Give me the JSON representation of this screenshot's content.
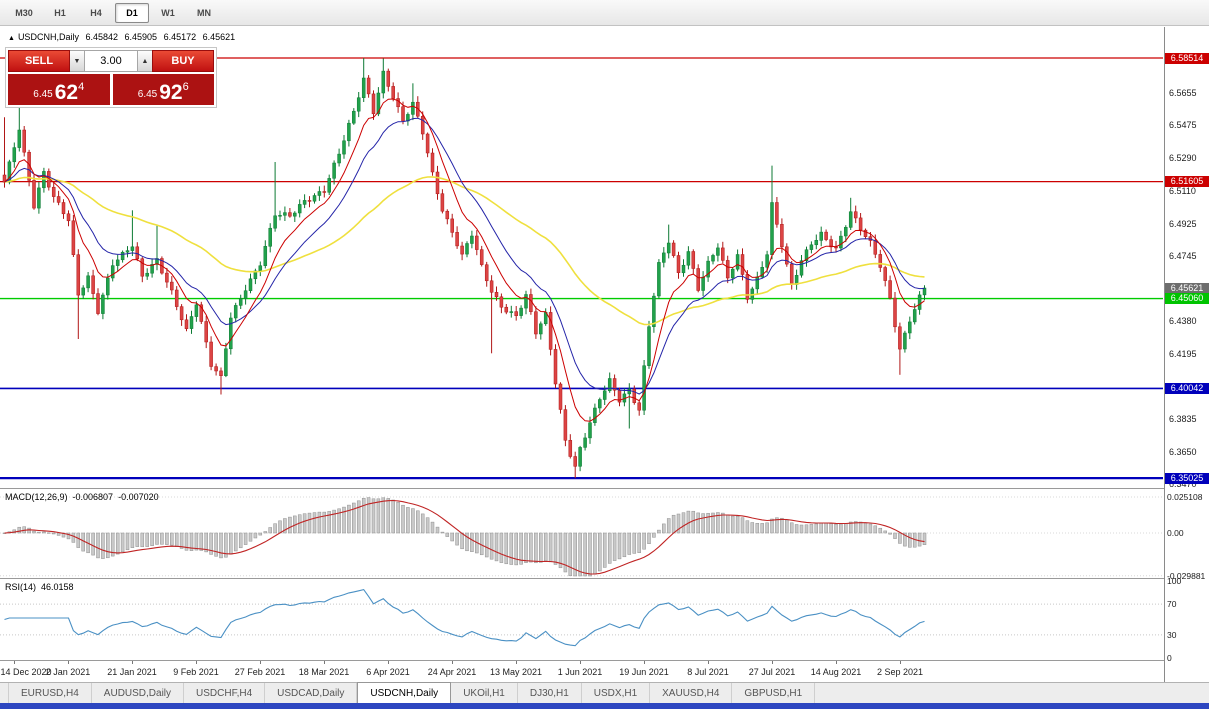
{
  "timeframe_bar": {
    "items": [
      "M30",
      "H1",
      "H4",
      "D1",
      "W1",
      "MN"
    ],
    "active": "D1"
  },
  "icons": {
    "collapse_triangle": "▲",
    "spin_down": "▼",
    "spin_up": "▲"
  },
  "chart": {
    "symbol": "USDCNH,Daily",
    "open": "6.45842",
    "high": "6.45905",
    "low": "6.45172",
    "close": "6.45621"
  },
  "trade": {
    "sell_label": "SELL",
    "buy_label": "BUY",
    "volume": "3.00",
    "bid": {
      "prefix": "6.45",
      "big": "62",
      "sup": "4"
    },
    "ask": {
      "prefix": "6.45",
      "big": "92",
      "sup": "6"
    }
  },
  "price_scale": {
    "ticks": [
      "6.5655",
      "6.5475",
      "6.5290",
      "6.5110",
      "6.4925",
      "6.4745",
      "6.4380",
      "6.4195",
      "6.3835",
      "6.3650",
      "6.3470"
    ],
    "level_labels": [
      {
        "text": "6.58514",
        "color": "#cc0000"
      },
      {
        "text": "6.51605",
        "color": "#cc0000"
      },
      {
        "text": "6.45621",
        "color": "#6e6e6e"
      },
      {
        "text": "6.45060",
        "color": "#00c400"
      },
      {
        "text": "6.40042",
        "color": "#0000bb"
      },
      {
        "text": "6.35025",
        "color": "#0000bb"
      }
    ]
  },
  "indicators": {
    "macd": {
      "label": "MACD(12,26,9)",
      "value_main": "-0.006807",
      "value_signal": "-0.007020",
      "fast": 12,
      "slow": 26,
      "signal": 9,
      "scale": [
        {
          "text": "0.025108",
          "v": 0.025108
        },
        {
          "text": "0.00",
          "v": 0
        },
        {
          "text": "-0.029881",
          "v": -0.029881
        }
      ]
    },
    "rsi": {
      "label": "RSI(14)",
      "value": "46.0158",
      "period": 14,
      "scale": [
        {
          "text": "100",
          "v": 100
        },
        {
          "text": "70",
          "v": 70
        },
        {
          "text": "30",
          "v": 30
        },
        {
          "text": "0",
          "v": 0
        }
      ]
    }
  },
  "date_axis": {
    "labels": [
      {
        "label": "14 Dec 2020",
        "i": 2
      },
      {
        "label": "2 Jan 2021",
        "i": 13
      },
      {
        "label": "21 Jan 2021",
        "i": 26
      },
      {
        "label": "9 Feb 2021",
        "i": 39
      },
      {
        "label": "27 Feb 2021",
        "i": 52
      },
      {
        "label": "18 Mar 2021",
        "i": 65
      },
      {
        "label": "6 Apr 2021",
        "i": 78
      },
      {
        "label": "24 Apr 2021",
        "i": 91
      },
      {
        "label": "13 May 2021",
        "i": 104
      },
      {
        "label": "1 Jun 2021",
        "i": 117
      },
      {
        "label": "19 Jun 2021",
        "i": 130
      },
      {
        "label": "8 Jul 2021",
        "i": 143
      },
      {
        "label": "27 Jul 2021",
        "i": 156
      },
      {
        "label": "14 Aug 2021",
        "i": 169
      },
      {
        "label": "2 Sep 2021",
        "i": 182
      }
    ]
  },
  "tab_bar": {
    "tabs": [
      "EURUSD,H4",
      "AUDUSD,Daily",
      "USDCHF,H4",
      "USDCAD,Daily",
      "USDCNH,Daily",
      "UKOil,H1",
      "DJ30,H1",
      "USDX,H1",
      "XAUUSD,H4",
      "GBPUSD,H1"
    ],
    "active_index": 4
  },
  "chart_data": {
    "type": "candlestick",
    "symbol": "USDCNH",
    "timeframe": "Daily",
    "ohlc_current": {
      "open": 6.45842,
      "high": 6.45905,
      "low": 6.45172,
      "close": 6.45621
    },
    "current_price": 6.45621,
    "candle_count": 188,
    "candle_step": 4.92,
    "candle_x0": 4.5,
    "y_axis": {
      "price_top": 6.6025,
      "price_bottom": 6.3447
    },
    "horizontal_levels": [
      {
        "price": 6.58514,
        "color": "#cc0000",
        "width": 1.2
      },
      {
        "price": 6.51605,
        "color": "#cc0000",
        "width": 1.2
      },
      {
        "price": 6.4506,
        "color": "#00cc00",
        "width": 1.4
      },
      {
        "price": 6.40042,
        "color": "#0000bb",
        "width": 1.6
      },
      {
        "price": 6.35025,
        "color": "#0000bb",
        "width": 2.2
      }
    ],
    "moving_averages": [
      {
        "period": 8,
        "color": "#cc0000",
        "width": 1
      },
      {
        "period": 16,
        "color": "#2424a8",
        "width": 1
      },
      {
        "period": 55,
        "color": "#efe03e",
        "width": 1.6
      }
    ],
    "colors": {
      "up": "#21a14b",
      "up_border": "#0c7a33",
      "down": "#dc4444",
      "down_border": "#b01616",
      "macd_histogram": "#c9c9c9",
      "macd_histogram_border": "#8f8f8f",
      "macd_signal": "#c02424",
      "rsi_line": "#4a90c4"
    },
    "waypoints": [
      [
        0,
        6.515,
        6.552,
        null
      ],
      [
        3,
        6.545,
        6.558,
        null
      ],
      [
        6,
        6.503,
        null,
        null
      ],
      [
        8,
        6.522,
        null,
        null
      ],
      [
        10,
        6.508,
        null,
        null
      ],
      [
        13,
        6.494,
        null,
        null
      ],
      [
        15,
        6.452,
        null,
        6.428
      ],
      [
        17,
        6.462,
        null,
        null
      ],
      [
        19,
        6.444,
        null,
        null
      ],
      [
        22,
        6.471,
        null,
        null
      ],
      [
        26,
        6.48,
        6.5,
        null
      ],
      [
        28,
        6.462,
        null,
        null
      ],
      [
        31,
        6.472,
        6.492,
        null
      ],
      [
        34,
        6.455,
        null,
        null
      ],
      [
        37,
        6.433,
        null,
        null
      ],
      [
        39,
        6.448,
        null,
        null
      ],
      [
        42,
        6.413,
        null,
        null
      ],
      [
        44,
        6.406,
        null,
        6.397
      ],
      [
        46,
        6.441,
        null,
        null
      ],
      [
        49,
        6.457,
        null,
        null
      ],
      [
        52,
        6.47,
        null,
        null
      ],
      [
        55,
        6.497,
        6.527,
        null
      ],
      [
        58,
        6.497,
        null,
        null
      ],
      [
        61,
        6.506,
        null,
        null
      ],
      [
        65,
        6.511,
        null,
        null
      ],
      [
        68,
        6.531,
        null,
        null
      ],
      [
        71,
        6.555,
        null,
        null
      ],
      [
        73,
        6.574,
        6.5851,
        null
      ],
      [
        75,
        6.556,
        null,
        null
      ],
      [
        77,
        6.577,
        6.5849,
        null
      ],
      [
        79,
        6.563,
        null,
        null
      ],
      [
        81,
        6.549,
        null,
        null
      ],
      [
        83,
        6.559,
        6.571,
        null
      ],
      [
        85,
        6.544,
        null,
        null
      ],
      [
        87,
        6.521,
        null,
        null
      ],
      [
        89,
        6.501,
        null,
        null
      ],
      [
        91,
        6.488,
        null,
        null
      ],
      [
        93,
        6.474,
        null,
        null
      ],
      [
        95,
        6.486,
        null,
        null
      ],
      [
        97,
        6.468,
        null,
        null
      ],
      [
        99,
        6.455,
        null,
        6.42
      ],
      [
        101,
        6.447,
        null,
        null
      ],
      [
        104,
        6.441,
        null,
        null
      ],
      [
        106,
        6.452,
        null,
        null
      ],
      [
        108,
        6.431,
        null,
        null
      ],
      [
        110,
        6.441,
        null,
        null
      ],
      [
        112,
        6.404,
        null,
        null
      ],
      [
        114,
        6.372,
        null,
        null
      ],
      [
        116,
        6.357,
        null,
        6.3502
      ],
      [
        117,
        6.367,
        null,
        null
      ],
      [
        119,
        6.381,
        null,
        null
      ],
      [
        121,
        6.394,
        null,
        null
      ],
      [
        123,
        6.404,
        null,
        null
      ],
      [
        125,
        6.394,
        null,
        null
      ],
      [
        127,
        6.4,
        null,
        6.378
      ],
      [
        129,
        6.389,
        null,
        null
      ],
      [
        131,
        6.436,
        null,
        null
      ],
      [
        133,
        6.469,
        null,
        null
      ],
      [
        135,
        6.482,
        6.492,
        null
      ],
      [
        137,
        6.464,
        null,
        null
      ],
      [
        139,
        6.477,
        null,
        null
      ],
      [
        141,
        6.457,
        null,
        null
      ],
      [
        143,
        6.471,
        null,
        null
      ],
      [
        145,
        6.48,
        null,
        null
      ],
      [
        147,
        6.461,
        null,
        null
      ],
      [
        149,
        6.474,
        null,
        null
      ],
      [
        151,
        6.451,
        null,
        null
      ],
      [
        153,
        6.462,
        null,
        null
      ],
      [
        155,
        6.477,
        null,
        null
      ],
      [
        156,
        6.504,
        6.525,
        null
      ],
      [
        158,
        6.481,
        null,
        null
      ],
      [
        160,
        6.457,
        null,
        null
      ],
      [
        162,
        6.471,
        null,
        null
      ],
      [
        164,
        6.481,
        null,
        null
      ],
      [
        166,
        6.487,
        null,
        null
      ],
      [
        169,
        6.479,
        null,
        null
      ],
      [
        171,
        6.492,
        null,
        null
      ],
      [
        172,
        6.499,
        6.507,
        null
      ],
      [
        174,
        6.489,
        null,
        null
      ],
      [
        176,
        6.481,
        null,
        null
      ],
      [
        178,
        6.469,
        null,
        null
      ],
      [
        180,
        6.451,
        null,
        null
      ],
      [
        182,
        6.423,
        null,
        6.408
      ],
      [
        184,
        6.439,
        null,
        null
      ],
      [
        186,
        6.451,
        null,
        null
      ],
      [
        187,
        6.4562,
        null,
        null
      ]
    ]
  }
}
